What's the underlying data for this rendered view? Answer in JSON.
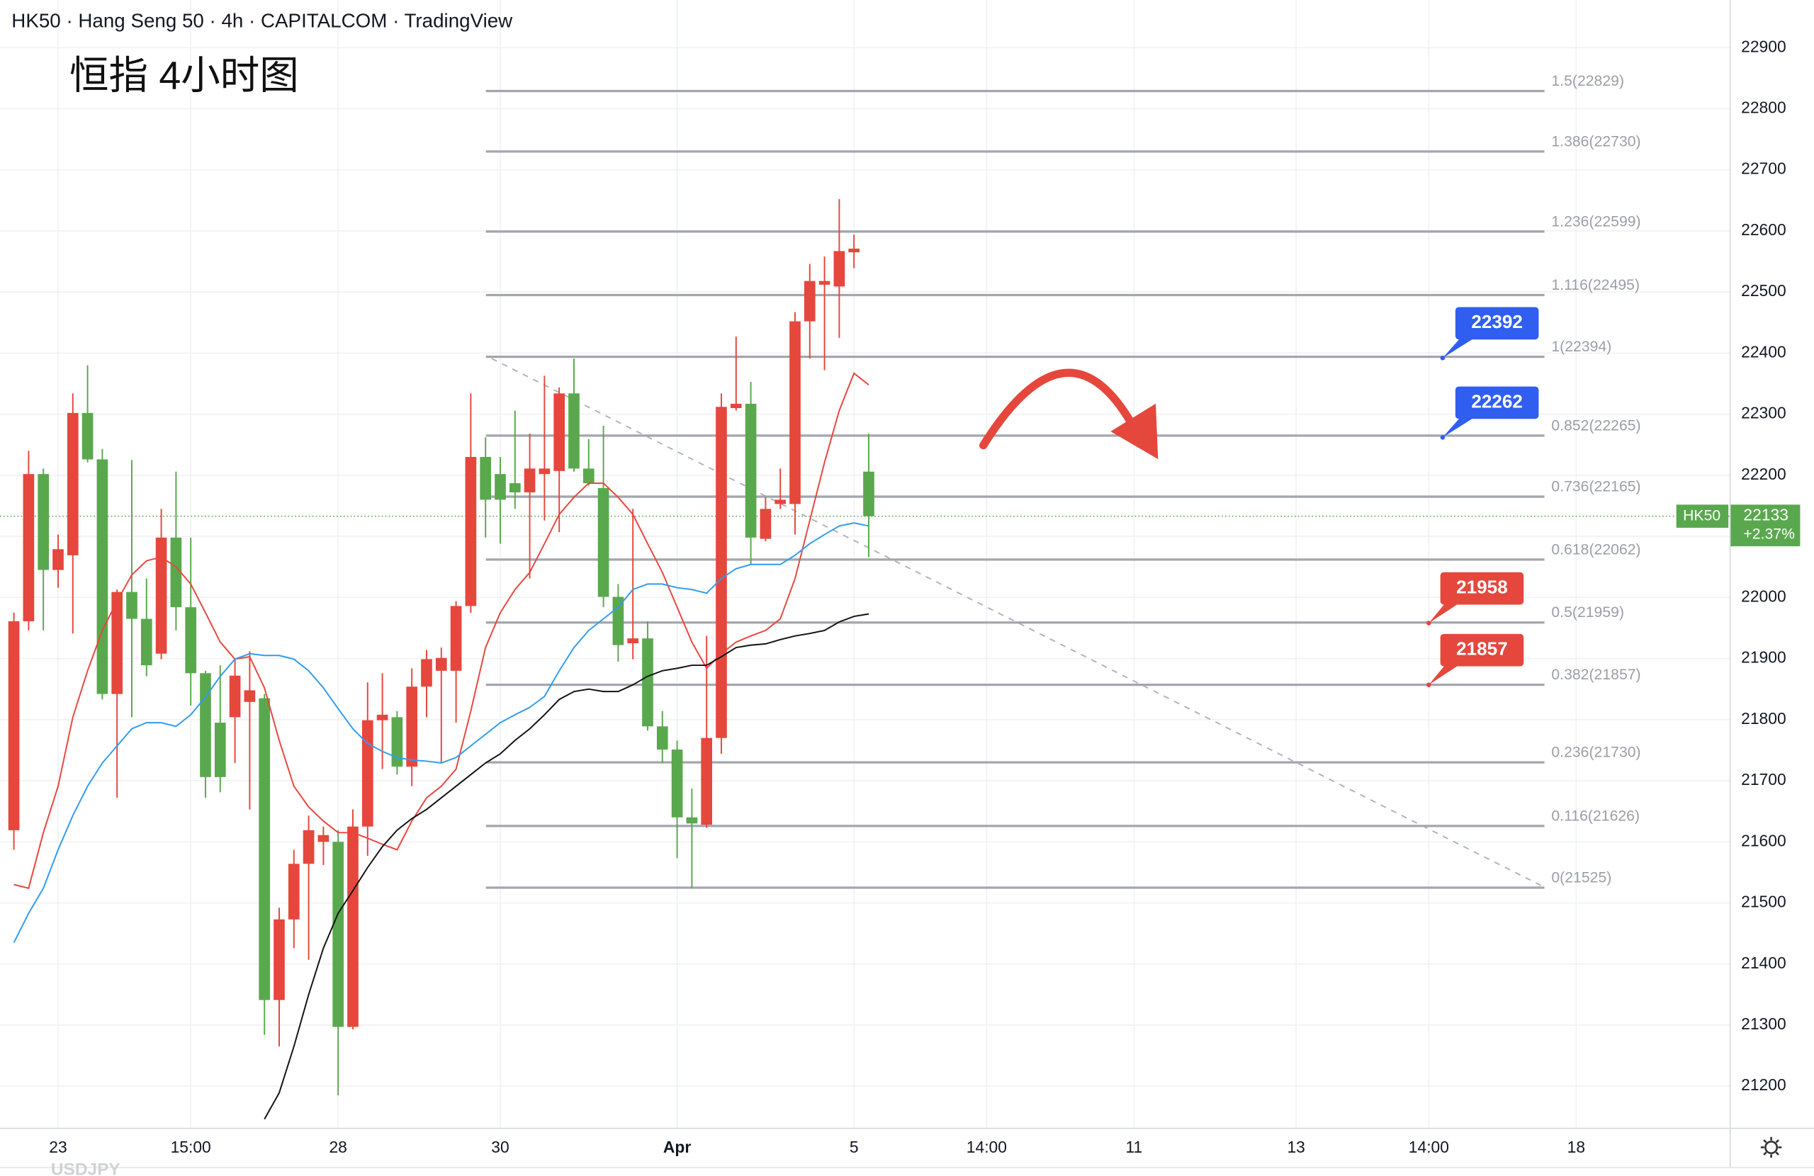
{
  "header": {
    "text": "HK50 · Hang Seng 50 · 4h · CAPITALCOM · TradingView"
  },
  "watermark": "USDJPY",
  "chart_data": {
    "type": "candlestick",
    "title": "恒指 4小时图",
    "categories": [
      null,
      null,
      null,
      "23",
      null,
      null,
      null,
      null,
      null,
      null,
      null,
      null,
      "15:00",
      null,
      null,
      null,
      null,
      null,
      null,
      null,
      null,
      null,
      "28",
      null,
      null,
      null,
      null,
      null,
      null,
      null,
      null,
      null,
      null,
      "30",
      null,
      null,
      null,
      null,
      null,
      null,
      null,
      null,
      null,
      null,
      null,
      "Apr",
      null,
      null,
      null,
      null,
      null,
      null,
      null,
      null,
      null,
      null,
      null,
      "5",
      null,
      null,
      null,
      null,
      null,
      null,
      null,
      null,
      "14:00",
      null,
      null,
      null,
      null,
      null,
      null,
      null,
      null,
      null,
      "11",
      null,
      null,
      null,
      null,
      null,
      null,
      null,
      null,
      null,
      null,
      "13",
      null,
      null,
      null,
      null,
      null,
      null,
      null,
      null,
      "14:00",
      null,
      null,
      null,
      null,
      null,
      null,
      null,
      null,
      null,
      "18"
    ],
    "open": [
      21619,
      21961,
      22202,
      22045,
      22069,
      22302,
      22226,
      21842,
      22009,
      21965,
      21908,
      22098,
      21984,
      21876,
      21795,
      21804,
      21829,
      21835,
      21341,
      21473,
      21564,
      21600,
      21600,
      21297,
      21625,
      21799,
      21804,
      21723,
      21854,
      21880,
      21880,
      21986,
      22230,
      22202,
      22187,
      22172,
      22202,
      22207,
      22334,
      22211,
      22179,
      22001,
      21925,
      21933,
      21789,
      21751,
      21640,
      21628,
      21770,
      22310,
      22317,
      22096,
      22153,
      22153,
      22452,
      22512,
      22509,
      22565,
      22206,
      null,
      null,
      null,
      null,
      null,
      null,
      null,
      null,
      null,
      null,
      null,
      null,
      null,
      null,
      null,
      null,
      null,
      null,
      null,
      null,
      null,
      null,
      null,
      null,
      null,
      null,
      null,
      null,
      null,
      null,
      null,
      null,
      null,
      null,
      null,
      null,
      null,
      null,
      null,
      null,
      null,
      null,
      null,
      null,
      null,
      null,
      null,
      null
    ],
    "high": [
      21975,
      22240,
      22211,
      22103,
      22334,
      22380,
      22243,
      22013,
      22225,
      22031,
      22145,
      22206,
      22098,
      21880,
      21889,
      21899,
      21912,
      21842,
      21492,
      21587,
      21643,
      21625,
      21619,
      21653,
      21861,
      21876,
      21814,
      21884,
      21914,
      21918,
      21994,
      22334,
      22262,
      22230,
      22306,
      22268,
      22363,
      22344,
      22391,
      22259,
      22281,
      22022,
      22145,
      21961,
      21814,
      21766,
      21687,
      21937,
      22334,
      22427,
      22353,
      22164,
      22211,
      22467,
      22546,
      22558,
      22652,
      22594,
      22268,
      null,
      null,
      null,
      null,
      null,
      null,
      null,
      null,
      null,
      null,
      null,
      null,
      null,
      null,
      null,
      null,
      null,
      null,
      null,
      null,
      null,
      null,
      null,
      null,
      null,
      null,
      null,
      null,
      null,
      null,
      null,
      null,
      null,
      null,
      null,
      null,
      null,
      null,
      null,
      null,
      null,
      null,
      null,
      null,
      null,
      null,
      null,
      null
    ],
    "low": [
      21587,
      21946,
      21946,
      22016,
      21941,
      22221,
      21833,
      21672,
      21804,
      21871,
      21899,
      21946,
      21823,
      21672,
      21681,
      21729,
      21653,
      21284,
      21265,
      21426,
      21407,
      21562,
      21185,
      21293,
      21577,
      21719,
      21710,
      21691,
      21804,
      21729,
      21795,
      21975,
      22098,
      22088,
      22145,
      22031,
      22126,
      22107,
      22206,
      22183,
      21984,
      21895,
      21899,
      21782,
      21729,
      21573,
      21524,
      21623,
      21744,
      22306,
      22054,
      22092,
      22145,
      22103,
      22391,
      22372,
      22425,
      22539,
      22066,
      null,
      null,
      null,
      null,
      null,
      null,
      null,
      null,
      null,
      null,
      null,
      null,
      null,
      null,
      null,
      null,
      null,
      null,
      null,
      null,
      null,
      null,
      null,
      null,
      null,
      null,
      null,
      null,
      null,
      null,
      null,
      null,
      null,
      null,
      null,
      null,
      null,
      null,
      null,
      null,
      null,
      null,
      null,
      null,
      null,
      null,
      null,
      null
    ],
    "close": [
      21961,
      22202,
      22045,
      22079,
      22302,
      22226,
      21842,
      22009,
      21965,
      21889,
      22098,
      21984,
      21876,
      21706,
      21706,
      21872,
      21848,
      21341,
      21473,
      21564,
      21619,
      21611,
      21297,
      21625,
      21799,
      21808,
      21723,
      21854,
      21899,
      21901,
      21986,
      22230,
      22160,
      22160,
      22172,
      22211,
      22211,
      22334,
      22211,
      22187,
      22001,
      21922,
      21933,
      21789,
      21751,
      21640,
      21630,
      21770,
      22312,
      22317,
      22098,
      22145,
      22160,
      22452,
      22518,
      22518,
      22567,
      22571,
      22133,
      null,
      null,
      null,
      null,
      null,
      null,
      null,
      null,
      null,
      null,
      null,
      null,
      null,
      null,
      null,
      null,
      null,
      null,
      null,
      null,
      null,
      null,
      null,
      null,
      null,
      null,
      null,
      null,
      null,
      null,
      null,
      null,
      null,
      null,
      null,
      null,
      null,
      null,
      null,
      null,
      null,
      null,
      null,
      null,
      null,
      null,
      null,
      null
    ],
    "up_color": "#e5473d",
    "down_color": "#5aa84e",
    "moving_averages": [
      {
        "color": "#e8453c",
        "values": [
          21530,
          21524,
          21615,
          21691,
          21804,
          21880,
          21946,
          21994,
          22037,
          22060,
          22066,
          22050,
          22022,
          21975,
          21927,
          21899,
          21903,
          21852,
          21766,
          21691,
          21657,
          21634,
          21615,
          21615,
          21606,
          21596,
          21587,
          21634,
          21672,
          21691,
          21719,
          21814,
          21918,
          21975,
          22013,
          22041,
          22088,
          22136,
          22164,
          22187,
          22187,
          22164,
          22136,
          22088,
          22041,
          21984,
          21927,
          21884,
          21908,
          21927,
          21937,
          21946,
          21965,
          22031,
          22126,
          22221,
          22306,
          22367,
          22348,
          null,
          null,
          null,
          null,
          null,
          null,
          null,
          null,
          null,
          null,
          null,
          null,
          null,
          null,
          null,
          null,
          null,
          null,
          null,
          null,
          null,
          null,
          null,
          null,
          null,
          null,
          null,
          null,
          null,
          null,
          null,
          null,
          null,
          null,
          null,
          null,
          null,
          null,
          null,
          null,
          null,
          null,
          null,
          null,
          null,
          null,
          null,
          null
        ]
      },
      {
        "color": "#2f9bf0",
        "values": [
          21435,
          21483,
          21524,
          21587,
          21643,
          21691,
          21729,
          21757,
          21785,
          21795,
          21795,
          21789,
          21808,
          21837,
          21871,
          21899,
          21908,
          21905,
          21905,
          21899,
          21880,
          21852,
          21818,
          21785,
          21761,
          21748,
          21738,
          21734,
          21732,
          21729,
          21738,
          21757,
          21776,
          21795,
          21808,
          21820,
          21838,
          21880,
          21918,
          21946,
          21965,
          21984,
          22013,
          22022,
          22022,
          22016,
          22013,
          22007,
          22031,
          22047,
          22054,
          22054,
          22054,
          22069,
          22088,
          22103,
          22117,
          22122,
          22117,
          null,
          null,
          null,
          null,
          null,
          null,
          null,
          null,
          null,
          null,
          null,
          null,
          null,
          null,
          null,
          null,
          null,
          null,
          null,
          null,
          null,
          null,
          null,
          null,
          null,
          null,
          null,
          null,
          null,
          null,
          null,
          null,
          null,
          null,
          null,
          null,
          null,
          null,
          null,
          null,
          null,
          null,
          null,
          null,
          null,
          null,
          null,
          null
        ]
      },
      {
        "color": "#111111",
        "values": [
          null,
          null,
          null,
          null,
          null,
          null,
          null,
          null,
          null,
          null,
          null,
          null,
          null,
          null,
          null,
          null,
          null,
          21146,
          21189,
          21265,
          21350,
          21426,
          21483,
          21520,
          21558,
          21592,
          21619,
          21638,
          21653,
          21672,
          21691,
          21710,
          21729,
          21744,
          21766,
          21785,
          21808,
          21833,
          21846,
          21850,
          21846,
          21846,
          21857,
          21871,
          21880,
          21884,
          21889,
          21889,
          21903,
          21918,
          21922,
          21924,
          21931,
          21937,
          21941,
          21946,
          21960,
          21969,
          21973,
          null,
          null,
          null,
          null,
          null,
          null,
          null,
          null,
          null,
          null,
          null,
          null,
          null,
          null,
          null,
          null,
          null,
          null,
          null,
          null,
          null,
          null,
          null,
          null,
          null,
          null,
          null,
          null,
          null,
          null,
          null,
          null,
          null,
          null,
          null,
          null,
          null,
          null,
          null,
          null,
          null,
          null,
          null,
          null,
          null,
          null,
          null,
          null
        ]
      }
    ],
    "ylim": [
      21132,
      22978
    ],
    "yticks": [
      21200,
      21300,
      21400,
      21500,
      21600,
      21700,
      21800,
      21900,
      22000,
      22100,
      22200,
      22300,
      22400,
      22500,
      22600,
      22700,
      22800,
      22900
    ],
    "grid": true,
    "fib_levels": [
      {
        "label": "1.5(22829)",
        "value": 22829
      },
      {
        "label": "1.386(22730)",
        "value": 22730
      },
      {
        "label": "1.236(22599)",
        "value": 22599
      },
      {
        "label": "1.116(22495)",
        "value": 22495
      },
      {
        "label": "1(22394)",
        "value": 22394
      },
      {
        "label": "0.852(22265)",
        "value": 22265
      },
      {
        "label": "0.736(22165)",
        "value": 22165
      },
      {
        "label": "0.618(22062)",
        "value": 22062
      },
      {
        "label": "0.5(21959)",
        "value": 21959
      },
      {
        "label": "0.382(21857)",
        "value": 21857
      },
      {
        "label": "0.236(21730)",
        "value": 21730
      },
      {
        "label": "0.116(21626)",
        "value": 21626
      },
      {
        "label": "0(21525)",
        "value": 21525
      }
    ],
    "price_tags": [
      {
        "value": 22392,
        "color": "#2f5ef0"
      },
      {
        "value": 22262,
        "color": "#2f5ef0"
      },
      {
        "value": 21958,
        "color": "#e5473d"
      },
      {
        "value": 21857,
        "color": "#e5473d"
      }
    ],
    "last_price": {
      "symbol": "HK50",
      "value": 22133,
      "change": "+2.37%",
      "color": "#5aa84e"
    }
  }
}
